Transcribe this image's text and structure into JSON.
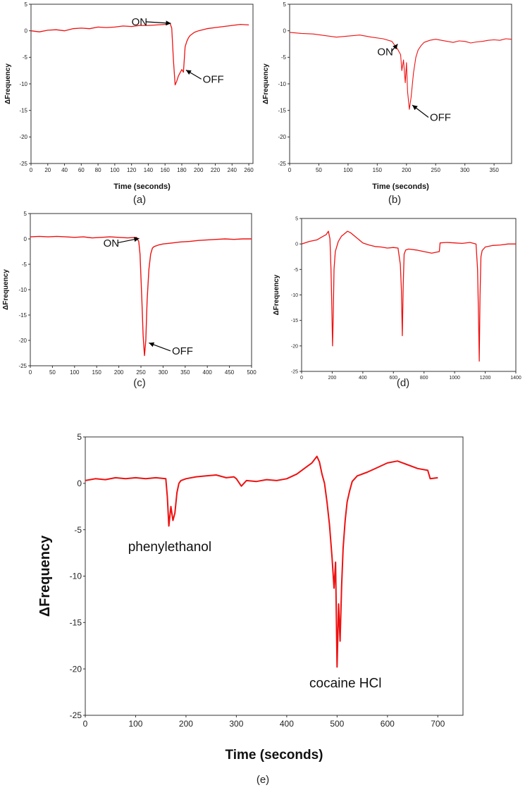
{
  "chart_data": [
    {
      "panel": "(a)",
      "type": "line",
      "xlabel": "Time (seconds)",
      "ylabel": "ΔFrequency",
      "xlim": [
        0,
        265
      ],
      "ylim": [
        -25,
        5
      ],
      "xticks": [
        0,
        20,
        40,
        60,
        80,
        100,
        120,
        140,
        160,
        180,
        200,
        220,
        240,
        260
      ],
      "yticks": [
        5,
        0,
        -5,
        -10,
        -15,
        -20,
        -25
      ],
      "grid": false,
      "series": [
        {
          "color": "#ee1111",
          "x": [
            0,
            10,
            20,
            30,
            40,
            50,
            60,
            70,
            80,
            90,
            100,
            110,
            120,
            130,
            140,
            150,
            160,
            166,
            168,
            170,
            172,
            174,
            176,
            178,
            180,
            182,
            184,
            186,
            188,
            190,
            195,
            200,
            210,
            220,
            230,
            240,
            250,
            260
          ],
          "y": [
            0.0,
            -0.2,
            0.1,
            0.2,
            0.0,
            0.4,
            0.5,
            0.4,
            0.7,
            0.6,
            0.7,
            0.9,
            0.8,
            1.0,
            1.0,
            1.1,
            1.2,
            1.4,
            0.5,
            -5.5,
            -10.2,
            -9.5,
            -8.5,
            -7.9,
            -7.3,
            -7.8,
            -3.0,
            -2.0,
            -1.3,
            -0.9,
            -0.3,
            0.0,
            0.4,
            0.6,
            0.8,
            1.0,
            1.2,
            1.1
          ]
        }
      ],
      "annotations": [
        {
          "text": "ON",
          "x": 120,
          "y": 1.0,
          "arrow_to": [
            167,
            1.4
          ]
        },
        {
          "text": "OFF",
          "x": 205,
          "y": -9.8,
          "arrow_to": [
            185,
            -7.4
          ]
        }
      ]
    },
    {
      "panel": "(b)",
      "type": "line",
      "xlabel": "Time (seconds)",
      "ylabel": "ΔFrequency",
      "xlim": [
        0,
        380
      ],
      "ylim": [
        -25,
        5
      ],
      "xticks": [
        0,
        50,
        100,
        150,
        200,
        250,
        300,
        350
      ],
      "yticks": [
        5,
        0,
        -5,
        -10,
        -15,
        -20,
        -25
      ],
      "grid": false,
      "series": [
        {
          "color": "#ee1111",
          "x": [
            0,
            20,
            40,
            60,
            80,
            100,
            120,
            140,
            160,
            175,
            185,
            190,
            192,
            195,
            198,
            200,
            202,
            205,
            208,
            212,
            216,
            220,
            225,
            230,
            240,
            250,
            260,
            270,
            280,
            290,
            300,
            310,
            320,
            330,
            340,
            350,
            360,
            370,
            380
          ],
          "y": [
            -0.3,
            -0.5,
            -0.6,
            -0.9,
            -1.2,
            -1.0,
            -0.8,
            -1.2,
            -1.5,
            -2.0,
            -3.5,
            -4.5,
            -7.5,
            -5.5,
            -9.8,
            -6.0,
            -11.5,
            -14.8,
            -12.5,
            -8.0,
            -5.0,
            -3.6,
            -2.8,
            -2.2,
            -1.8,
            -1.6,
            -1.8,
            -2.0,
            -2.2,
            -1.9,
            -2.0,
            -2.3,
            -2.1,
            -2.0,
            -1.8,
            -1.7,
            -1.8,
            -1.5,
            -1.6
          ]
        }
      ],
      "annotations": [
        {
          "text": "ON",
          "x": 150,
          "y": -4.6,
          "arrow_to": [
            185,
            -2.5
          ]
        },
        {
          "text": "OFF",
          "x": 240,
          "y": -17.0,
          "arrow_to": [
            210,
            -14.0
          ]
        }
      ]
    },
    {
      "panel": "(c)",
      "type": "line",
      "xlabel": "",
      "ylabel": "ΔFrequency",
      "xlim": [
        0,
        500
      ],
      "ylim": [
        -25,
        5
      ],
      "xticks": [
        0,
        50,
        100,
        150,
        200,
        250,
        300,
        350,
        400,
        450,
        500
      ],
      "yticks": [
        5,
        0,
        -5,
        -10,
        -15,
        -20,
        -25
      ],
      "grid": false,
      "series": [
        {
          "color": "#ee1111",
          "x": [
            0,
            20,
            40,
            60,
            80,
            100,
            120,
            140,
            160,
            180,
            200,
            220,
            240,
            245,
            248,
            252,
            255,
            258,
            261,
            264,
            268,
            272,
            276,
            280,
            290,
            300,
            320,
            340,
            360,
            380,
            400,
            420,
            440,
            460,
            480,
            500
          ],
          "y": [
            0.4,
            0.5,
            0.4,
            0.5,
            0.4,
            0.3,
            0.4,
            0.2,
            0.3,
            0.4,
            0.3,
            0.2,
            0.3,
            -0.5,
            -3.0,
            -12.0,
            -19.0,
            -23.0,
            -20.0,
            -12.0,
            -6.0,
            -3.0,
            -1.8,
            -1.5,
            -1.2,
            -1.0,
            -0.8,
            -0.6,
            -0.5,
            -0.3,
            -0.2,
            -0.1,
            0.0,
            -0.1,
            0.0,
            0.0
          ]
        }
      ],
      "annotations": [
        {
          "text": "ON",
          "x": 165,
          "y": -1.5,
          "arrow_to": [
            246,
            0.1
          ]
        },
        {
          "text": "OFF",
          "x": 320,
          "y": -22.8,
          "arrow_to": [
            268,
            -20.5
          ]
        }
      ]
    },
    {
      "panel": "(d)",
      "type": "line",
      "xlabel": "",
      "ylabel": "ΔFrequency",
      "xlim": [
        0,
        1400
      ],
      "ylim": [
        -25,
        5
      ],
      "xticks": [
        0,
        200,
        400,
        600,
        800,
        1000,
        1200,
        1400
      ],
      "yticks": [
        5,
        0,
        -5,
        -10,
        -15,
        -20,
        -25
      ],
      "grid": false,
      "series": [
        {
          "color": "#ee1111",
          "x": [
            0,
            50,
            100,
            140,
            160,
            175,
            185,
            192,
            197,
            202,
            207,
            212,
            220,
            240,
            260,
            280,
            300,
            320,
            360,
            400,
            440,
            480,
            520,
            560,
            600,
            630,
            645,
            652,
            658,
            664,
            670,
            680,
            700,
            750,
            800,
            850,
            900,
            905,
            950,
            1000,
            1050,
            1100,
            1140,
            1150,
            1156,
            1161,
            1166,
            1172,
            1180,
            1200,
            1250,
            1300,
            1350,
            1400
          ],
          "y": [
            0.0,
            0.5,
            0.8,
            1.5,
            1.8,
            2.5,
            1.0,
            -5.0,
            -12.0,
            -20.0,
            -14.0,
            -5.0,
            -1.5,
            0.5,
            1.5,
            2.0,
            2.5,
            2.2,
            1.2,
            0.2,
            -0.2,
            -0.5,
            -0.6,
            -0.8,
            -0.7,
            -0.8,
            -4.0,
            -9.0,
            -18.0,
            -8.0,
            -2.0,
            -1.2,
            -1.0,
            -1.2,
            -1.5,
            -1.8,
            -1.5,
            0.2,
            0.3,
            0.2,
            0.1,
            0.3,
            0.0,
            -5.0,
            -14.0,
            -23.0,
            -10.0,
            -2.5,
            -1.3,
            -0.6,
            -0.3,
            -0.2,
            0.0,
            0.0
          ]
        }
      ],
      "annotations": []
    },
    {
      "panel": "(e)",
      "type": "line",
      "xlabel": "Time (seconds)",
      "ylabel": "ΔFrequency",
      "xlim": [
        0,
        750
      ],
      "ylim": [
        -25,
        5
      ],
      "xticks": [
        0,
        100,
        200,
        300,
        400,
        500,
        600,
        700
      ],
      "yticks": [
        5,
        0,
        -5,
        -10,
        -15,
        -20,
        -25
      ],
      "grid": false,
      "series": [
        {
          "color": "#ee1111",
          "x": [
            0,
            20,
            40,
            60,
            80,
            100,
            120,
            140,
            160,
            163,
            166,
            170,
            174,
            178,
            182,
            186,
            190,
            200,
            220,
            240,
            260,
            280,
            295,
            300,
            310,
            320,
            340,
            360,
            380,
            400,
            420,
            440,
            450,
            460,
            465,
            470,
            475,
            480,
            485,
            490,
            494,
            497,
            500,
            503,
            506,
            509,
            512,
            516,
            520,
            525,
            530,
            540,
            560,
            580,
            600,
            620,
            640,
            660,
            680,
            685,
            700
          ],
          "y": [
            0.3,
            0.5,
            0.4,
            0.6,
            0.5,
            0.6,
            0.5,
            0.6,
            0.5,
            -1.5,
            -4.6,
            -2.5,
            -4.0,
            -3.2,
            -1.0,
            0.0,
            0.3,
            0.5,
            0.7,
            0.8,
            0.9,
            0.6,
            0.7,
            0.5,
            -0.3,
            0.3,
            0.2,
            0.4,
            0.3,
            0.5,
            1.0,
            1.8,
            2.2,
            2.9,
            2.3,
            1.0,
            0.0,
            -2.0,
            -4.5,
            -8.0,
            -11.3,
            -8.5,
            -19.8,
            -13.0,
            -17.0,
            -11.0,
            -7.0,
            -4.0,
            -2.0,
            -0.8,
            0.2,
            0.8,
            1.2,
            1.7,
            2.2,
            2.4,
            2.0,
            1.6,
            1.4,
            0.5,
            0.6
          ]
        }
      ],
      "annotations": [
        {
          "text": "phenylethanol",
          "x": 85,
          "y": -7.3
        },
        {
          "text": "cocaine HCl",
          "x": 445,
          "y": -22.0
        }
      ]
    }
  ]
}
